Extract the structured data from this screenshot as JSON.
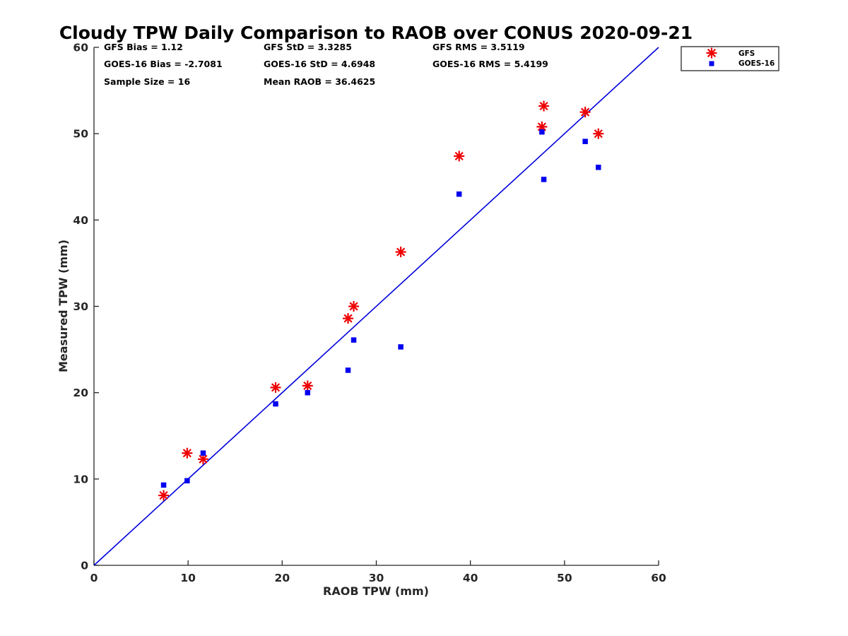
{
  "chart_data": {
    "type": "scatter",
    "title": "Cloudy TPW Daily Comparison to RAOB over CONUS 2020-09-21",
    "xlabel": "RAOB TPW (mm)",
    "ylabel": "Measured TPW (mm)",
    "xlim": [
      0,
      60
    ],
    "ylim": [
      0,
      60
    ],
    "xticks": [
      "0",
      "10",
      "20",
      "30",
      "40",
      "50",
      "60"
    ],
    "yticks": [
      "0",
      "10",
      "20",
      "30",
      "40",
      "50",
      "60"
    ],
    "grid": false,
    "legend_position": "outside top-right",
    "reference_line": {
      "x": [
        0,
        60
      ],
      "y": [
        0,
        60
      ],
      "color": "#0000dd"
    },
    "series": [
      {
        "name": "GFS",
        "marker": "asterisk",
        "color": "#ee0000",
        "x": [
          7.4,
          9.9,
          11.6,
          19.3,
          22.7,
          27.0,
          27.6,
          32.6,
          38.8,
          47.6,
          47.8,
          52.2,
          53.6
        ],
        "y": [
          8.1,
          13.0,
          12.3,
          20.6,
          20.8,
          28.6,
          30.0,
          36.3,
          47.4,
          50.8,
          53.2,
          52.5,
          50.0
        ]
      },
      {
        "name": "GOES-16",
        "marker": "square",
        "color": "#0000ee",
        "x": [
          7.4,
          9.9,
          11.6,
          19.3,
          22.7,
          27.0,
          27.6,
          32.6,
          38.8,
          47.6,
          47.8,
          52.2,
          53.6
        ],
        "y": [
          9.3,
          9.8,
          13.0,
          18.7,
          20.0,
          22.6,
          26.1,
          25.3,
          43.0,
          50.2,
          44.7,
          49.1,
          46.1
        ]
      }
    ],
    "annotations": [
      [
        "GFS Bias = 1.12",
        "GFS StD = 3.3285",
        "GFS RMS = 3.5119"
      ],
      [
        "GOES-16 Bias = -2.7081",
        "GOES-16 StD = 4.6948",
        "GOES-16 RMS = 5.4199"
      ],
      [
        "Sample Size = 16",
        "Mean RAOB = 36.4625"
      ]
    ]
  }
}
